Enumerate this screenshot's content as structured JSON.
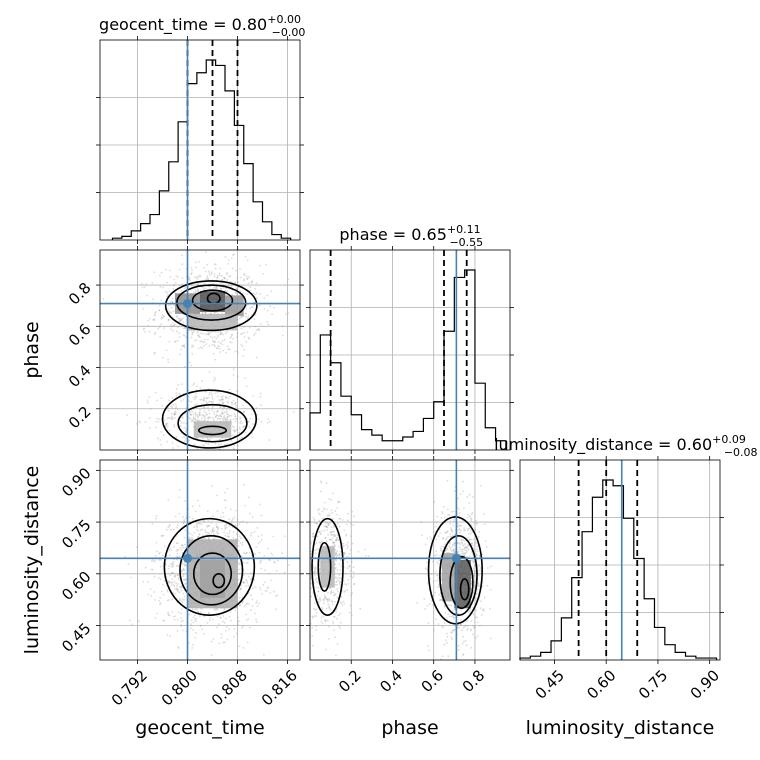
{
  "chart_data": {
    "type": "corner",
    "parameters": [
      "geocent_time",
      "phase",
      "luminosity_distance"
    ],
    "axes": {
      "geocent_time": {
        "range": [
          0.786,
          0.818
        ],
        "ticks": [
          0.792,
          0.8,
          0.808,
          0.816
        ],
        "tick_labels": [
          "0.792",
          "0.800",
          "0.808",
          "0.816"
        ],
        "label": "geocent_time"
      },
      "phase": {
        "range": [
          0.0,
          0.97
        ],
        "ticks": [
          0.2,
          0.4,
          0.6,
          0.8
        ],
        "tick_labels": [
          "0.2",
          "0.4",
          "0.6",
          "0.8"
        ],
        "label": "phase"
      },
      "luminosity_distance": {
        "range": [
          0.35,
          0.93
        ],
        "ticks": [
          0.45,
          0.6,
          0.75,
          0.9
        ],
        "tick_labels": [
          "0.45",
          "0.60",
          "0.75",
          "0.90"
        ],
        "label": "luminosity_distance"
      }
    },
    "titles": [
      {
        "param": "geocent_time",
        "name": "geocent_time",
        "value": "0.80",
        "plus": "+0.00",
        "minus": "−0.00"
      },
      {
        "param": "phase",
        "name": "phase",
        "value": "0.65",
        "plus": "+0.11",
        "minus": "−0.55"
      },
      {
        "param": "luminosity_distance",
        "name": "luminosity_distance",
        "value": "0.60",
        "plus": "+0.09",
        "minus": "−0.08"
      }
    ],
    "truths": {
      "geocent_time": 0.8,
      "phase": 0.71,
      "luminosity_distance": 0.645
    },
    "quantiles": {
      "geocent_time": [
        0.8,
        0.804,
        0.808
      ],
      "phase": [
        0.1,
        0.65,
        0.76
      ],
      "luminosity_distance": [
        0.52,
        0.6,
        0.69
      ]
    },
    "histograms": {
      "geocent_time": {
        "edges": [
          0.788,
          0.7895,
          0.791,
          0.7925,
          0.794,
          0.7955,
          0.797,
          0.7985,
          0.8,
          0.8015,
          0.803,
          0.8045,
          0.806,
          0.8075,
          0.809,
          0.8105,
          0.812,
          0.8135,
          0.815,
          0.8165
        ],
        "counts": [
          0.01,
          0.02,
          0.05,
          0.09,
          0.14,
          0.27,
          0.43,
          0.65,
          0.86,
          0.92,
          0.99,
          0.96,
          0.82,
          0.63,
          0.42,
          0.21,
          0.1,
          0.03,
          0.01
        ]
      },
      "phase": {
        "edges": [
          0.0,
          0.05,
          0.1,
          0.15,
          0.2,
          0.25,
          0.3,
          0.35,
          0.4,
          0.45,
          0.5,
          0.55,
          0.6,
          0.65,
          0.7,
          0.75,
          0.8,
          0.85,
          0.9,
          0.95
        ],
        "counts": [
          0.2,
          0.62,
          0.47,
          0.29,
          0.19,
          0.11,
          0.08,
          0.05,
          0.05,
          0.07,
          0.1,
          0.17,
          0.26,
          0.64,
          0.93,
          0.97,
          0.36,
          0.12,
          0.05
        ]
      },
      "luminosity_distance": {
        "edges": [
          0.35,
          0.38,
          0.41,
          0.44,
          0.47,
          0.5,
          0.53,
          0.56,
          0.59,
          0.62,
          0.65,
          0.68,
          0.71,
          0.74,
          0.77,
          0.8,
          0.83,
          0.86,
          0.89,
          0.92
        ],
        "counts": [
          0.01,
          0.02,
          0.04,
          0.1,
          0.22,
          0.43,
          0.67,
          0.85,
          0.94,
          0.91,
          0.74,
          0.53,
          0.32,
          0.17,
          0.08,
          0.04,
          0.02,
          0.01,
          0.01
        ]
      }
    },
    "contour_panels": [
      {
        "x": "geocent_time",
        "y": "phase",
        "scatter_blobs": [
          {
            "cx": 0.8035,
            "cy": 0.68,
            "sx": 0.0042,
            "sy": 0.11,
            "n": 900
          },
          {
            "cx": 0.8035,
            "cy": 0.15,
            "sx": 0.0042,
            "sy": 0.08,
            "n": 550
          }
        ],
        "density_cells": [
          {
            "x0": 0.802,
            "x1": 0.806,
            "y0": 0.67,
            "y1": 0.77,
            "level": 0.85
          },
          {
            "x0": 0.798,
            "x1": 0.802,
            "y0": 0.66,
            "y1": 0.76,
            "level": 0.55
          },
          {
            "x0": 0.806,
            "x1": 0.809,
            "y0": 0.65,
            "y1": 0.75,
            "level": 0.5
          },
          {
            "x0": 0.8,
            "x1": 0.808,
            "y0": 0.58,
            "y1": 0.66,
            "level": 0.35
          },
          {
            "x0": 0.801,
            "x1": 0.807,
            "y0": 0.06,
            "y1": 0.14,
            "level": 0.35
          }
        ],
        "contours": [
          {
            "cx": 0.8042,
            "cy": 0.735,
            "rx": 0.001,
            "ry": 0.025
          },
          {
            "cx": 0.804,
            "cy": 0.725,
            "rx": 0.0032,
            "ry": 0.05
          },
          {
            "cx": 0.8038,
            "cy": 0.715,
            "rx": 0.0055,
            "ry": 0.085
          },
          {
            "cx": 0.8038,
            "cy": 0.7,
            "rx": 0.0073,
            "ry": 0.12
          },
          {
            "cx": 0.804,
            "cy": 0.095,
            "rx": 0.0022,
            "ry": 0.02
          },
          {
            "cx": 0.804,
            "cy": 0.13,
            "rx": 0.0055,
            "ry": 0.09
          },
          {
            "cx": 0.8035,
            "cy": 0.15,
            "rx": 0.0075,
            "ry": 0.14
          }
        ]
      },
      {
        "x": "geocent_time",
        "y": "luminosity_distance",
        "scatter_blobs": [
          {
            "cx": 0.8035,
            "cy": 0.61,
            "sx": 0.0042,
            "sy": 0.085,
            "n": 1300
          }
        ],
        "density_cells": [
          {
            "x0": 0.802,
            "x1": 0.806,
            "y0": 0.53,
            "y1": 0.64,
            "level": 0.75
          },
          {
            "x0": 0.8,
            "x1": 0.808,
            "y0": 0.5,
            "y1": 0.7,
            "level": 0.4
          }
        ],
        "contours": [
          {
            "cx": 0.805,
            "cy": 0.58,
            "rx": 0.0009,
            "ry": 0.02
          },
          {
            "cx": 0.804,
            "cy": 0.6,
            "rx": 0.003,
            "ry": 0.06
          },
          {
            "cx": 0.8038,
            "cy": 0.61,
            "rx": 0.005,
            "ry": 0.1
          },
          {
            "cx": 0.8035,
            "cy": 0.62,
            "rx": 0.0072,
            "ry": 0.14
          }
        ]
      },
      {
        "x": "phase",
        "y": "luminosity_distance",
        "scatter_blobs": [
          {
            "cx": 0.72,
            "cy": 0.6,
            "sx": 0.06,
            "sy": 0.09,
            "n": 900
          },
          {
            "cx": 0.09,
            "cy": 0.62,
            "sx": 0.06,
            "sy": 0.09,
            "n": 550
          }
        ],
        "density_cells": [
          {
            "x0": 0.7,
            "x1": 0.78,
            "y0": 0.5,
            "y1": 0.64,
            "level": 0.8
          },
          {
            "x0": 0.64,
            "x1": 0.7,
            "y0": 0.52,
            "y1": 0.66,
            "level": 0.45
          },
          {
            "x0": 0.05,
            "x1": 0.12,
            "y0": 0.56,
            "y1": 0.68,
            "level": 0.35
          }
        ],
        "contours": [
          {
            "cx": 0.75,
            "cy": 0.555,
            "rx": 0.02,
            "ry": 0.03
          },
          {
            "cx": 0.735,
            "cy": 0.575,
            "rx": 0.055,
            "ry": 0.075
          },
          {
            "cx": 0.72,
            "cy": 0.595,
            "rx": 0.09,
            "ry": 0.115
          },
          {
            "cx": 0.705,
            "cy": 0.61,
            "rx": 0.13,
            "ry": 0.155
          },
          {
            "cx": 0.07,
            "cy": 0.62,
            "rx": 0.03,
            "ry": 0.07
          },
          {
            "cx": 0.085,
            "cy": 0.62,
            "rx": 0.075,
            "ry": 0.14
          }
        ]
      }
    ]
  },
  "colors": {
    "truth": "#4682b4",
    "contour": "#000000",
    "scatter": "#9a9a9a",
    "grid": "#b0b0b0"
  }
}
